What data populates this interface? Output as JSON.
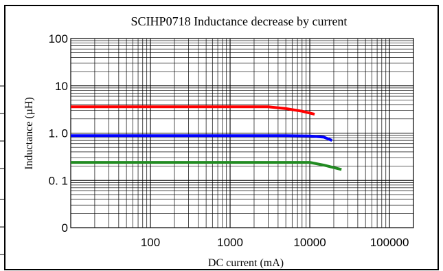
{
  "chart_data": {
    "type": "line",
    "title": "SCIHP0718 Inductance decrease by current",
    "xlabel": "DC current (mA)",
    "ylabel": "Inductance (µH)",
    "xscale": "log",
    "yscale": "log",
    "xlim": [
      10,
      200000
    ],
    "ylim": [
      0.01,
      100
    ],
    "x_tick_labels": [
      {
        "value": 100,
        "label": "100"
      },
      {
        "value": 1000,
        "label": "1000"
      },
      {
        "value": 10000,
        "label": "10000"
      },
      {
        "value": 100000,
        "label": "100000"
      }
    ],
    "y_tick_labels": [
      {
        "value": 100,
        "label": "100"
      },
      {
        "value": 10,
        "label": "10"
      },
      {
        "value": 1,
        "label": "1. 0"
      },
      {
        "value": 0.1,
        "label": "0. 1"
      },
      {
        "value": 0.01,
        "label": "0"
      }
    ],
    "grid": true,
    "legend": "none",
    "series": [
      {
        "color": "#ff0000",
        "points": [
          [
            10,
            3.6
          ],
          [
            1000,
            3.6
          ],
          [
            3000,
            3.6
          ],
          [
            5000,
            3.3
          ],
          [
            8000,
            2.9
          ],
          [
            11500,
            2.5
          ]
        ]
      },
      {
        "color": "#0000ff",
        "points": [
          [
            10,
            0.88
          ],
          [
            1000,
            0.88
          ],
          [
            5000,
            0.88
          ],
          [
            10000,
            0.87
          ],
          [
            15000,
            0.82
          ],
          [
            19000,
            0.7
          ]
        ]
      },
      {
        "color": "#228b22",
        "points": [
          [
            10,
            0.24
          ],
          [
            1000,
            0.24
          ],
          [
            5000,
            0.24
          ],
          [
            10000,
            0.24
          ],
          [
            15000,
            0.21
          ],
          [
            25000,
            0.17
          ]
        ]
      }
    ]
  }
}
